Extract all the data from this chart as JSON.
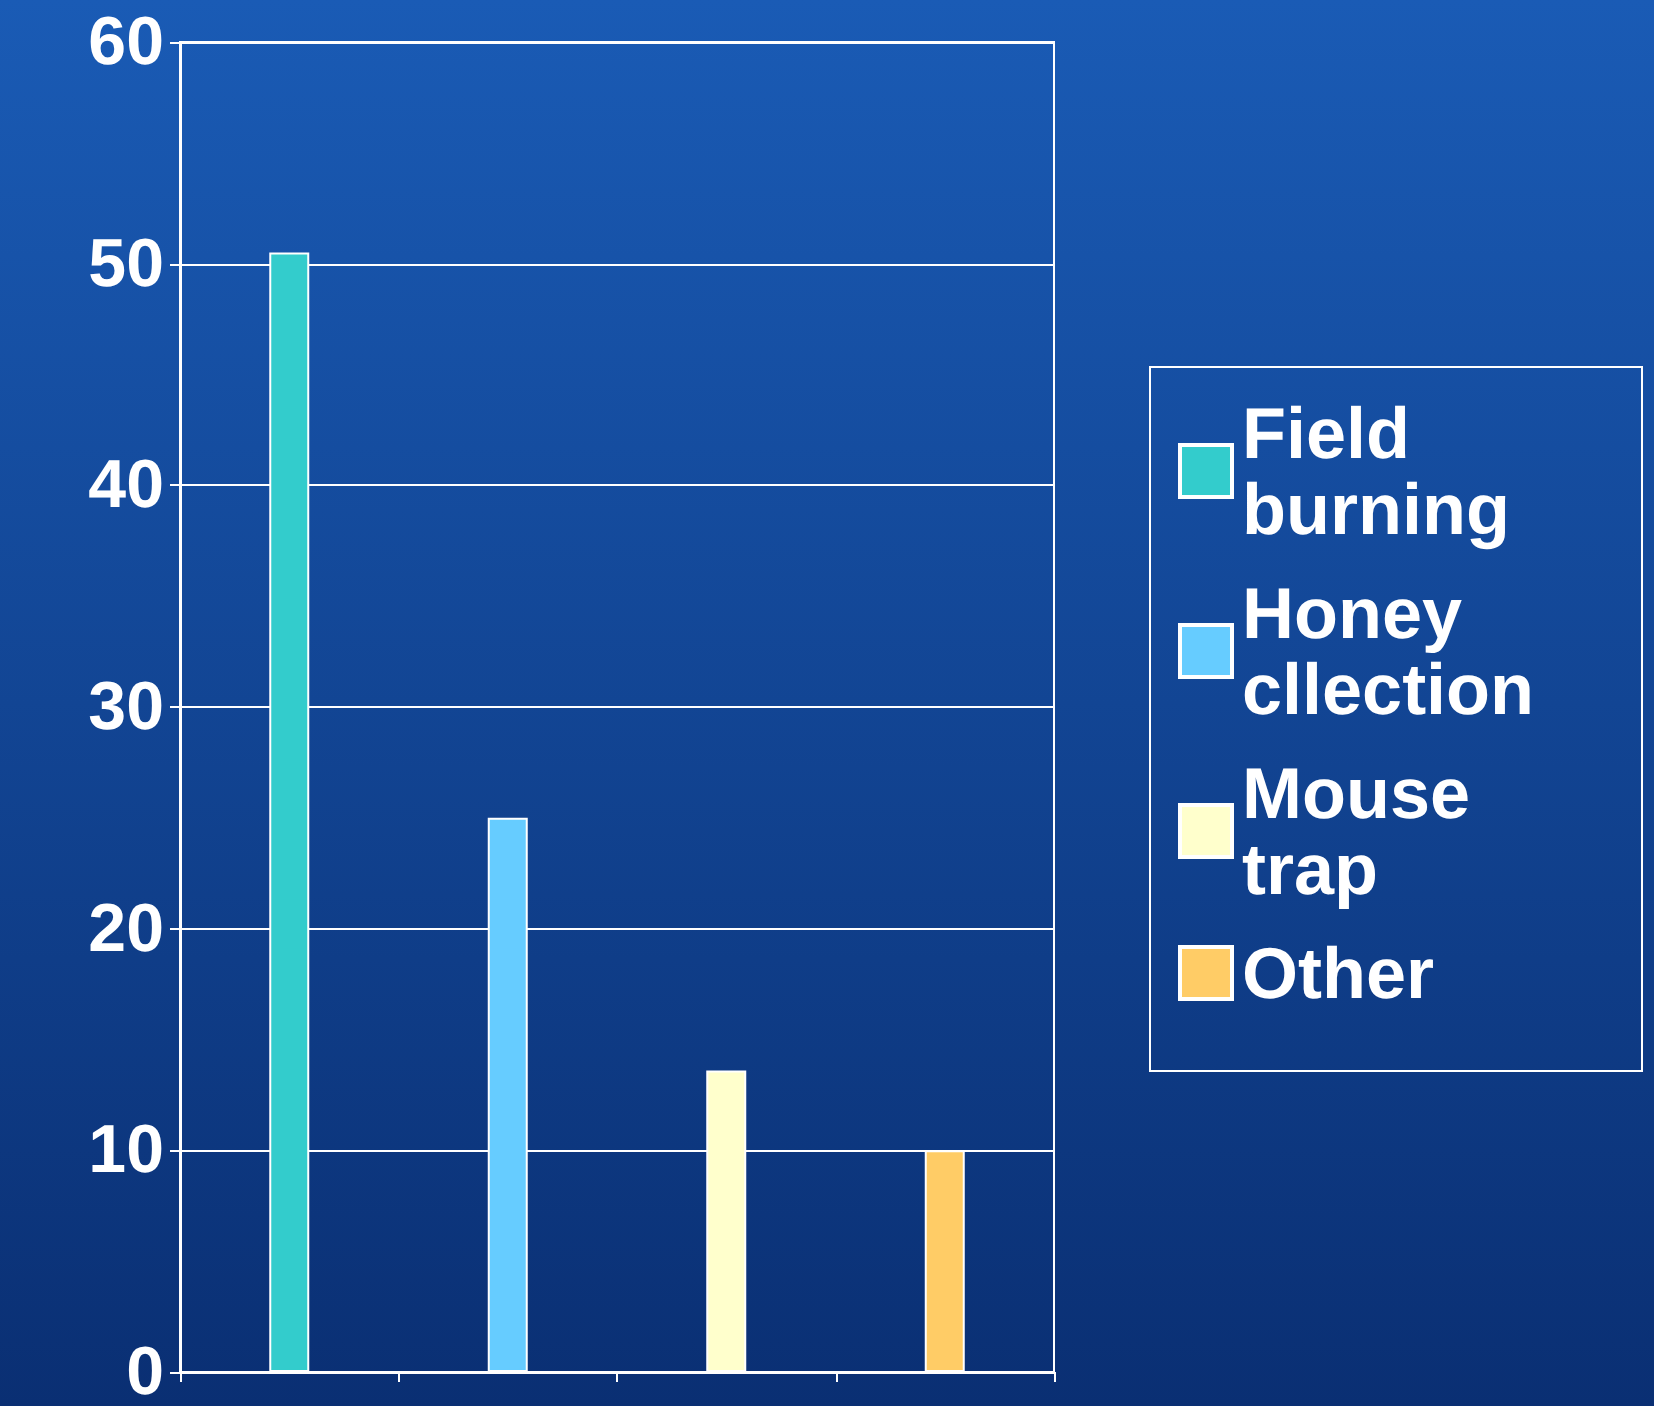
{
  "chart_data": {
    "type": "bar",
    "categories": [
      null,
      null,
      null,
      null
    ],
    "series": [
      {
        "name": "Field burning",
        "color": "#33cccc",
        "values": [
          50.5,
          null,
          null,
          null
        ]
      },
      {
        "name": "Honey cllection",
        "color": "#66ccff",
        "values": [
          null,
          25,
          null,
          null
        ]
      },
      {
        "name": "Mouse trap",
        "color": "#ffffcc",
        "values": [
          null,
          null,
          13.6,
          null
        ]
      },
      {
        "name": "Other",
        "color": "#ffcc66",
        "values": [
          null,
          null,
          null,
          10
        ]
      }
    ],
    "ylim": [
      0,
      60
    ],
    "yticks": [
      0,
      10,
      20,
      30,
      40,
      50,
      60
    ],
    "grid": "y",
    "legend": "right"
  }
}
